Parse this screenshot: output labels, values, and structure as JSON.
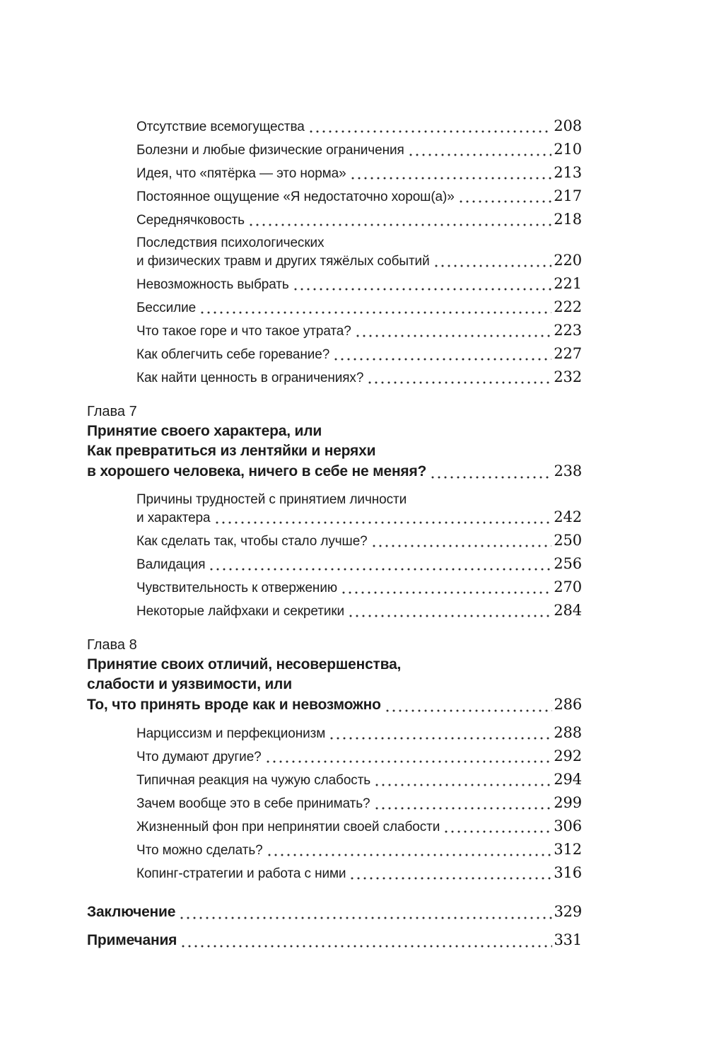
{
  "toc": {
    "blocks": [
      {
        "kind": "entries",
        "level": "sub",
        "items": [
          {
            "lines": [
              "Отсутствие всемогущества"
            ],
            "page": "208"
          },
          {
            "lines": [
              "Болезни и любые физические ограничения"
            ],
            "page": "210"
          },
          {
            "lines": [
              "Идея, что «пятёрка — это норма»"
            ],
            "page": "213"
          },
          {
            "lines": [
              "Постоянное ощущение «Я недостаточно хорош(а)»"
            ],
            "page": "217"
          },
          {
            "lines": [
              "Середнячковость"
            ],
            "page": "218"
          },
          {
            "lines": [
              "Последствия психологических",
              "и физических травм и других тяжёлых событий"
            ],
            "page": "220"
          },
          {
            "lines": [
              "Невозможность выбрать"
            ],
            "page": "221"
          },
          {
            "lines": [
              "Бессилие"
            ],
            "page": "222"
          },
          {
            "lines": [
              "Что такое горе и что такое утрата?"
            ],
            "page": "223"
          },
          {
            "lines": [
              "Как облегчить себе горевание?"
            ],
            "page": "227"
          },
          {
            "lines": [
              "Как найти ценность в ограничениях?"
            ],
            "page": "232"
          }
        ]
      },
      {
        "kind": "chapter",
        "label": "Глава 7",
        "title_lines": [
          "Принятие своего характера, или",
          "Как превратиться из лентяйки и неряхи",
          "в хорошего человека, ничего в себе не меняя?"
        ],
        "page": "238"
      },
      {
        "kind": "entries",
        "level": "sub",
        "items": [
          {
            "lines": [
              "Причины трудностей с принятием личности",
              "и характера"
            ],
            "page": "242"
          },
          {
            "lines": [
              "Как сделать так, чтобы стало лучше?"
            ],
            "page": "250"
          },
          {
            "lines": [
              "Валидация"
            ],
            "page": "256"
          },
          {
            "lines": [
              "Чувствительность к отвержению"
            ],
            "page": "270"
          },
          {
            "lines": [
              "Некоторые лайфхаки и секретики"
            ],
            "page": "284"
          }
        ]
      },
      {
        "kind": "chapter",
        "label": "Глава 8",
        "title_lines": [
          "Принятие своих отличий, несовершенства,",
          "слабости и уязвимости, или",
          "То, что принять вроде как и невозможно"
        ],
        "page": "286"
      },
      {
        "kind": "entries",
        "level": "sub",
        "items": [
          {
            "lines": [
              "Нарциссизм и перфекционизм"
            ],
            "page": "288"
          },
          {
            "lines": [
              "Что думают другие?"
            ],
            "page": "292"
          },
          {
            "lines": [
              "Типичная реакция на чужую слабость"
            ],
            "page": "294"
          },
          {
            "lines": [
              "Зачем вообще это в себе принимать?"
            ],
            "page": "299"
          },
          {
            "lines": [
              "Жизненный фон при непринятии своей слабости"
            ],
            "page": "306"
          },
          {
            "lines": [
              "Что можно сделать?"
            ],
            "page": "312"
          },
          {
            "lines": [
              "Копинг-стратегии и работа с ними"
            ],
            "page": "316"
          }
        ]
      },
      {
        "kind": "entries",
        "level": "top",
        "items": [
          {
            "lines": [
              "Заключение"
            ],
            "page": "329"
          },
          {
            "lines": [
              "Примечания"
            ],
            "page": "331"
          }
        ]
      }
    ]
  },
  "colors": {
    "text": "#1c1c1c",
    "page_background": "#ffffff",
    "dot_leader": "#2e2e2e"
  }
}
